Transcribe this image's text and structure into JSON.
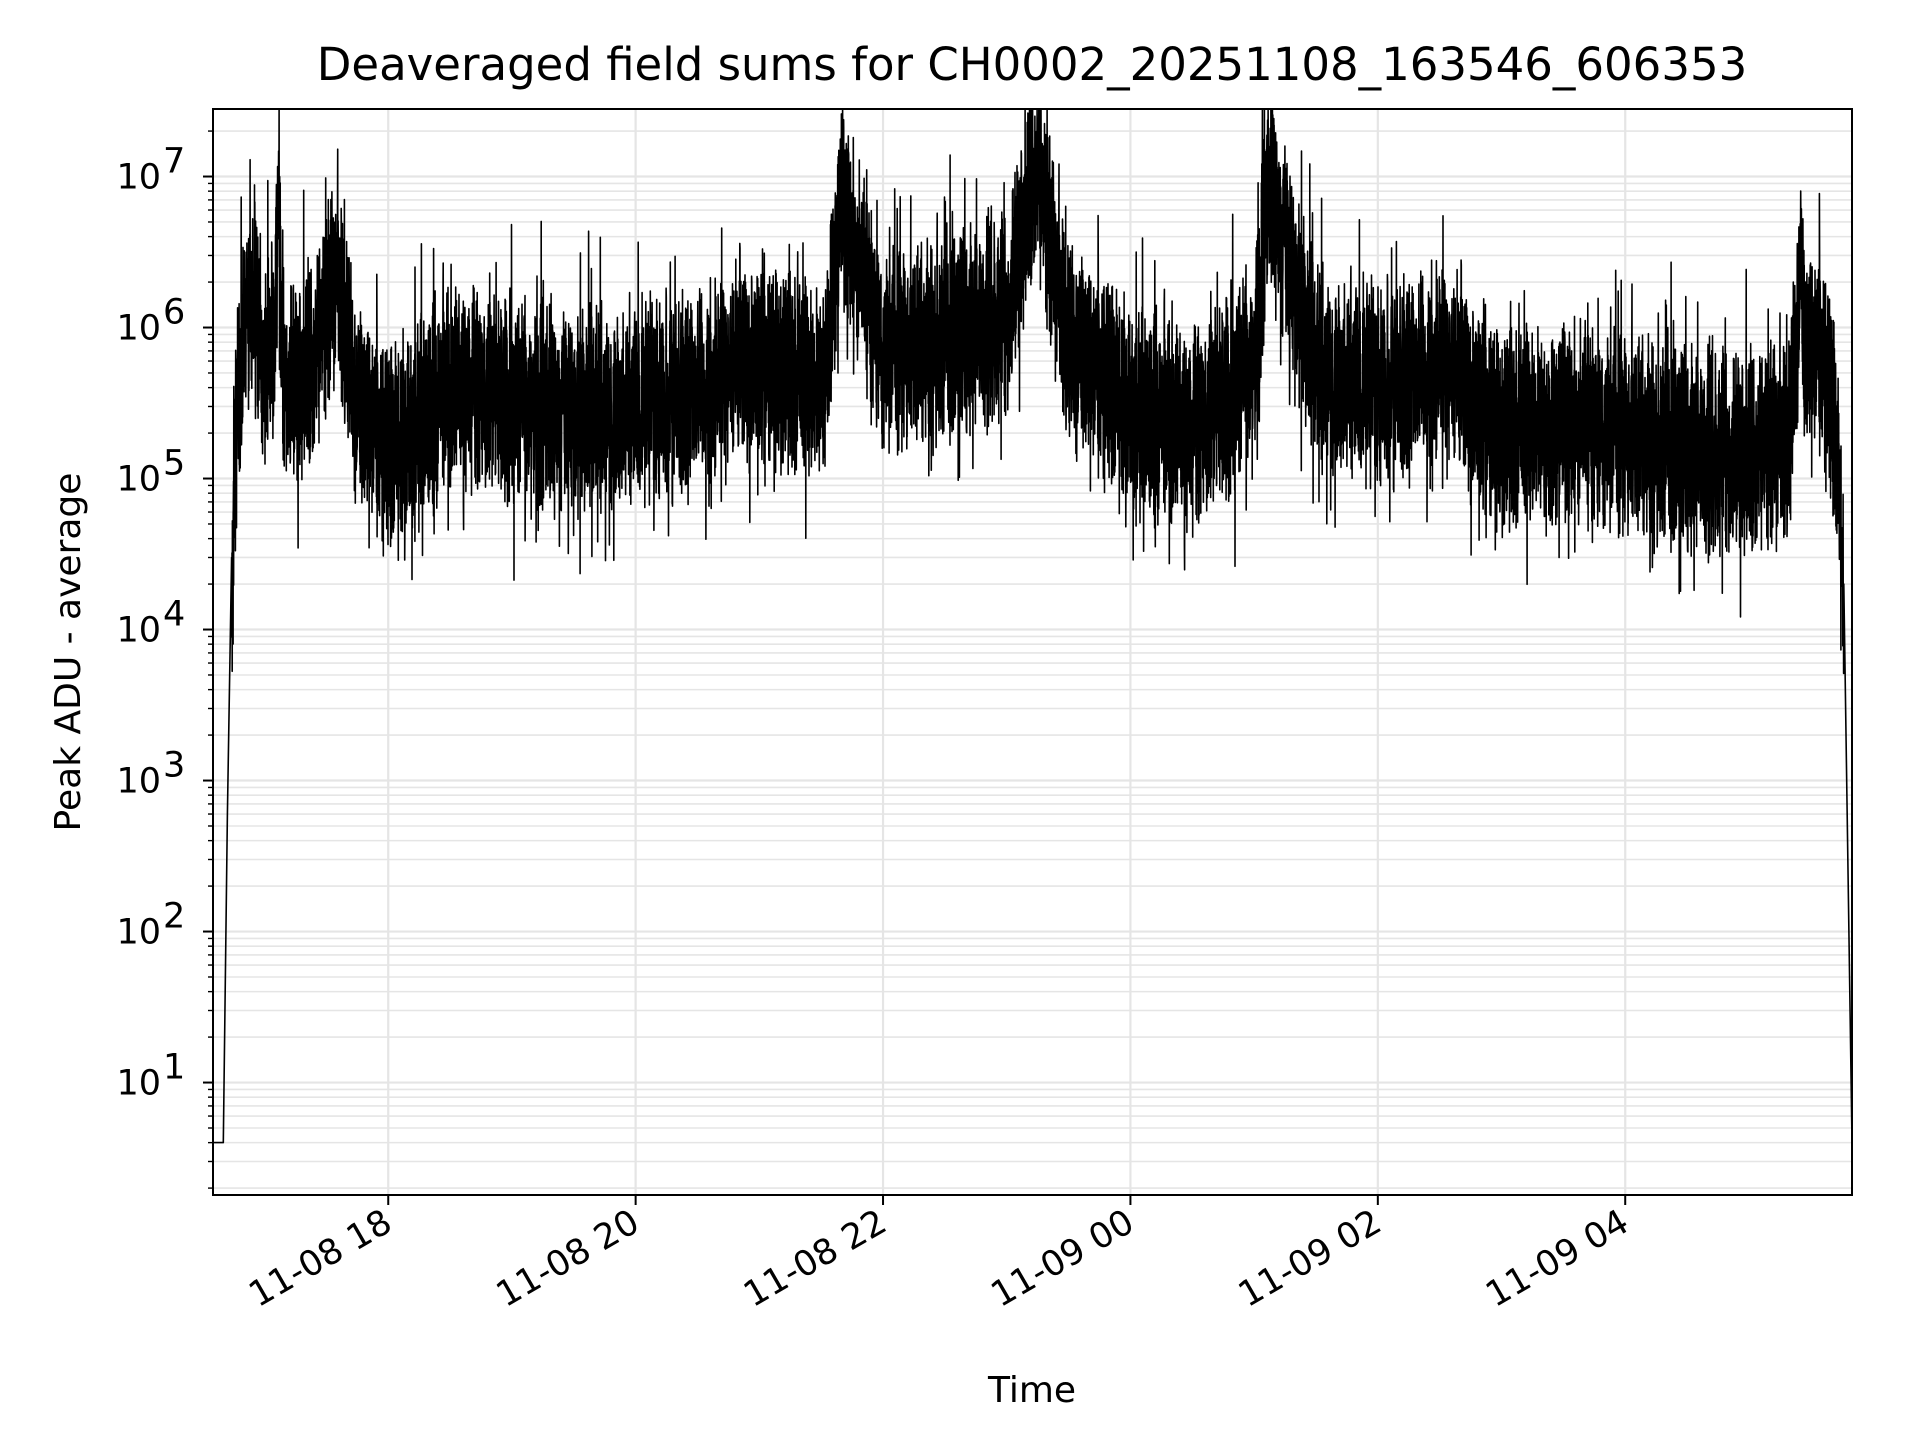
{
  "chart_data": {
    "type": "line",
    "title": "Deaveraged field sums for CH0002_20251108_163546_606353",
    "xlabel": "Time",
    "ylabel": "Peak ADU - average",
    "yscale": "log",
    "grid": true,
    "line_color": "#000000",
    "grid_color": "#e5e5e5",
    "x_range": [
      "2025-11-08 16:35",
      "2025-11-09 05:50"
    ],
    "ylim": [
      1.8,
      28000000
    ],
    "x_ticks": [
      "11-08 18",
      "11-08 20",
      "11-08 22",
      "11-09 00",
      "11-09 02",
      "11-09 04"
    ],
    "x_tick_times": [
      "2025-11-08 18:00",
      "2025-11-08 20:00",
      "2025-11-08 22:00",
      "2025-11-09 00:00",
      "2025-11-09 02:00",
      "2025-11-09 04:00"
    ],
    "y_ticks": [
      {
        "value": 10,
        "base": "10",
        "exp": "1"
      },
      {
        "value": 100,
        "base": "10",
        "exp": "2"
      },
      {
        "value": 1000,
        "base": "10",
        "exp": "3"
      },
      {
        "value": 10000,
        "base": "10",
        "exp": "4"
      },
      {
        "value": 100000,
        "base": "10",
        "exp": "5"
      },
      {
        "value": 1000000,
        "base": "10",
        "exp": "6"
      },
      {
        "value": 10000000,
        "base": "10",
        "exp": "7"
      }
    ],
    "series": [
      {
        "points": [
          [
            "2025-11-08 16:35",
            4
          ],
          [
            "2025-11-08 16:38",
            4
          ],
          [
            "2025-11-08 16:40",
            4
          ],
          [
            "2025-11-08 16:42",
            600
          ],
          [
            "2025-11-08 16:44",
            30000
          ],
          [
            "2025-11-08 16:47",
            300000
          ],
          [
            "2025-11-08 16:50",
            800000
          ],
          [
            "2025-11-08 16:55",
            1700000
          ],
          [
            "2025-11-08 17:00",
            500000
          ],
          [
            "2025-11-08 17:05",
            1200000
          ],
          [
            "2025-11-08 17:07",
            9500000
          ],
          [
            "2025-11-08 17:08",
            600000
          ],
          [
            "2025-11-08 17:15",
            400000
          ],
          [
            "2025-11-08 17:25",
            700000
          ],
          [
            "2025-11-08 17:35",
            2500000
          ],
          [
            "2025-11-08 17:45",
            300000
          ],
          [
            "2025-11-08 17:55",
            200000
          ],
          [
            "2025-11-08 18:00",
            150000
          ],
          [
            "2025-11-08 18:30",
            400000
          ],
          [
            "2025-11-08 19:00",
            350000
          ],
          [
            "2025-11-08 19:30",
            250000
          ],
          [
            "2025-11-08 20:00",
            300000
          ],
          [
            "2025-11-08 20:30",
            400000
          ],
          [
            "2025-11-08 21:00",
            600000
          ],
          [
            "2025-11-08 21:30",
            400000
          ],
          [
            "2025-11-08 21:40",
            7000000
          ],
          [
            "2025-11-08 22:00",
            700000
          ],
          [
            "2025-11-08 22:30",
            800000
          ],
          [
            "2025-11-08 23:00",
            1200000
          ],
          [
            "2025-11-08 23:14",
            13000000
          ],
          [
            "2025-11-08 23:30",
            800000
          ],
          [
            "2025-11-09 00:00",
            300000
          ],
          [
            "2025-11-09 00:30",
            200000
          ],
          [
            "2025-11-09 01:00",
            600000
          ],
          [
            "2025-11-09 01:07",
            9000000
          ],
          [
            "2025-11-09 01:30",
            500000
          ],
          [
            "2025-11-09 02:00",
            400000
          ],
          [
            "2025-11-09 02:30",
            600000
          ],
          [
            "2025-11-09 03:00",
            200000
          ],
          [
            "2025-11-09 03:30",
            250000
          ],
          [
            "2025-11-09 04:00",
            200000
          ],
          [
            "2025-11-09 04:30",
            150000
          ],
          [
            "2025-11-09 05:00",
            150000
          ],
          [
            "2025-11-09 05:20",
            200000
          ],
          [
            "2025-11-09 05:25",
            2500000
          ],
          [
            "2025-11-09 05:27",
            700000
          ],
          [
            "2025-11-09 05:35",
            700000
          ],
          [
            "2025-11-09 05:42",
            200000
          ],
          [
            "2025-11-09 05:46",
            20000
          ],
          [
            "2025-11-09 05:50",
            4
          ]
        ]
      }
    ]
  }
}
